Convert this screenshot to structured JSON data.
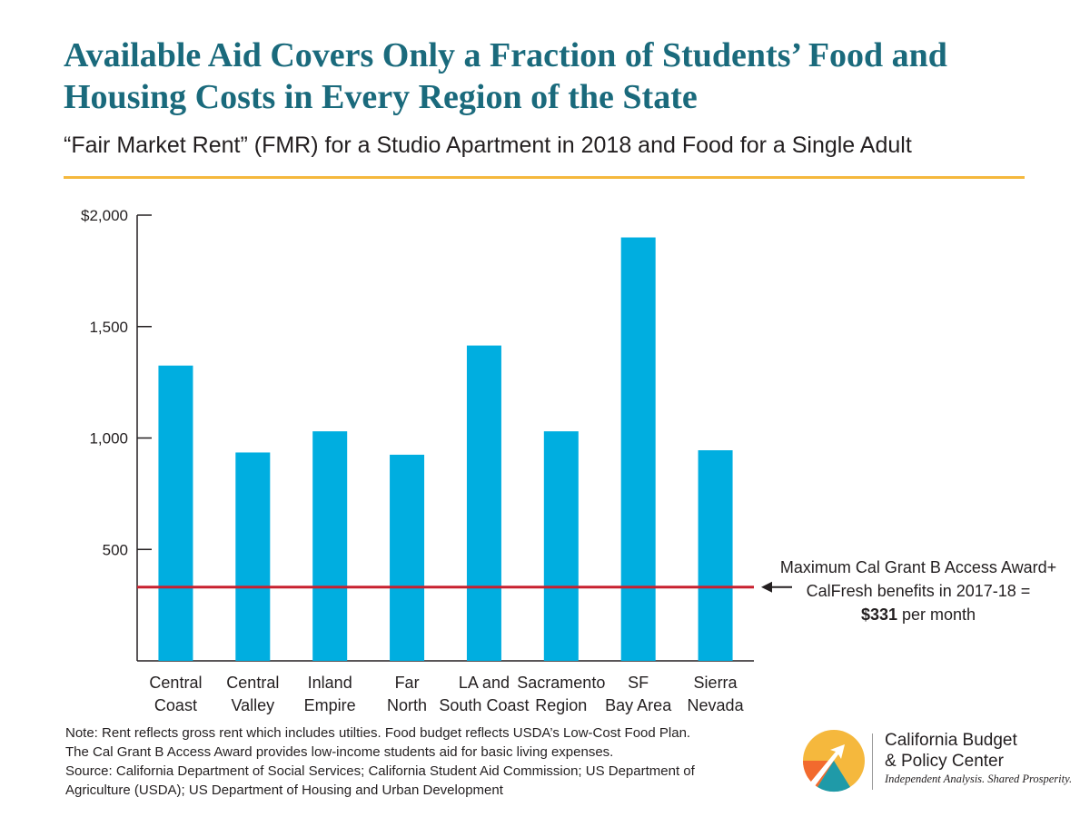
{
  "title": "Available Aid Covers Only a Fraction of Students’ Food and Housing Costs in Every Region of the State",
  "subtitle": "“Fair Market Rent” (FMR) for a Studio Apartment in 2018 and Food for a Single Adult",
  "colors": {
    "title": "#1a6a7c",
    "bar": "#00aee0",
    "reference_line": "#c8202f",
    "rule": "#f5b83d"
  },
  "chart_data": {
    "type": "bar",
    "categories": [
      [
        "Central",
        "Coast"
      ],
      [
        "Central",
        "Valley"
      ],
      [
        "Inland",
        "Empire"
      ],
      [
        "Far",
        "North"
      ],
      [
        "LA and",
        "South Coast"
      ],
      [
        "Sacramento",
        "Region"
      ],
      [
        "SF",
        "Bay Area"
      ],
      [
        "Sierra",
        "Nevada"
      ]
    ],
    "values": [
      1325,
      935,
      1030,
      925,
      1415,
      1030,
      1900,
      945
    ],
    "ylim": [
      0,
      2000
    ],
    "yticks": [
      500,
      1000,
      1500,
      2000
    ],
    "ytick_labels": [
      "500",
      "1,000",
      "1,500",
      "$2,000"
    ],
    "grid": false,
    "reference_line": {
      "value": 331,
      "label_lines": [
        "Maximum Cal Grant B Access Award+",
        "CalFresh benefits in 2017-18 ="
      ],
      "amount": "$331",
      "amount_suffix": " per month"
    }
  },
  "notes": [
    "Note: Rent reflects gross rent which includes utilties. Food budget reflects USDA’s Low-Cost Food Plan.",
    "The Cal Grant B Access Award provides low-income students aid for basic living expenses.",
    "Source: California Department of Social Services; California Student Aid Commission; US Department of",
    "Agriculture (USDA); US Department of Housing and Urban Development"
  ],
  "logo": {
    "name_line1": "California Budget",
    "name_line2": "& Policy Center",
    "tagline": "Independent Analysis. Shared Prosperity."
  }
}
